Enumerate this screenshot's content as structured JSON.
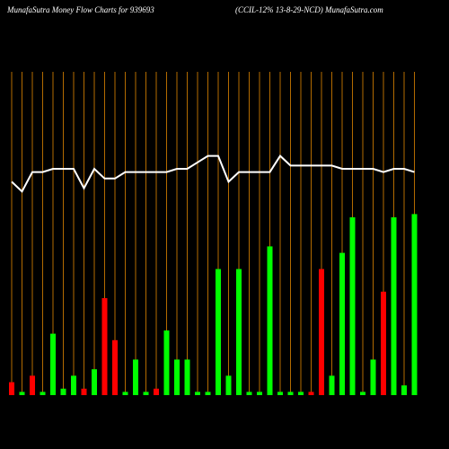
{
  "chart_data": {
    "type": "bar",
    "title": "MunafaSutra  Money Flow  Charts for 939693",
    "subtitle": "(CCIL-12% 13-8-29-NCD) MunafaSutra.com",
    "ylim": [
      0,
      100
    ],
    "values": [
      4,
      1,
      6,
      1,
      19,
      2,
      6,
      2,
      8,
      30,
      17,
      1,
      11,
      1,
      2,
      20,
      11,
      11,
      1,
      1,
      39,
      6,
      39,
      1,
      1,
      46,
      1,
      1,
      1,
      1,
      39,
      6,
      44,
      55,
      1,
      11,
      32,
      55,
      3,
      56
    ],
    "colors": [
      "#ff0000",
      "#00ff00",
      "#ff0000",
      "#00ff00",
      "#00ff00",
      "#00ff00",
      "#00ff00",
      "#ff0000",
      "#00ff00",
      "#ff0000",
      "#ff0000",
      "#00ff00",
      "#00ff00",
      "#00ff00",
      "#ff0000",
      "#00ff00",
      "#00ff00",
      "#00ff00",
      "#00ff00",
      "#00ff00",
      "#00ff00",
      "#00ff00",
      "#00ff00",
      "#00ff00",
      "#00ff00",
      "#00ff00",
      "#00ff00",
      "#00ff00",
      "#00ff00",
      "#ff0000",
      "#ff0000",
      "#00ff00",
      "#00ff00",
      "#00ff00",
      "#00ff00",
      "#00ff00",
      "#ff0000",
      "#00ff00",
      "#00ff00",
      "#00ff00"
    ],
    "line": {
      "color": "#ffffff",
      "values": [
        66,
        63,
        69,
        69,
        70,
        70,
        70,
        64,
        70,
        67,
        67,
        69,
        69,
        69,
        69,
        69,
        70,
        70,
        72,
        74,
        74,
        66,
        69,
        69,
        69,
        69,
        74,
        71,
        71,
        71,
        71,
        71,
        70,
        70,
        70,
        70,
        69,
        70,
        70,
        69
      ]
    }
  }
}
